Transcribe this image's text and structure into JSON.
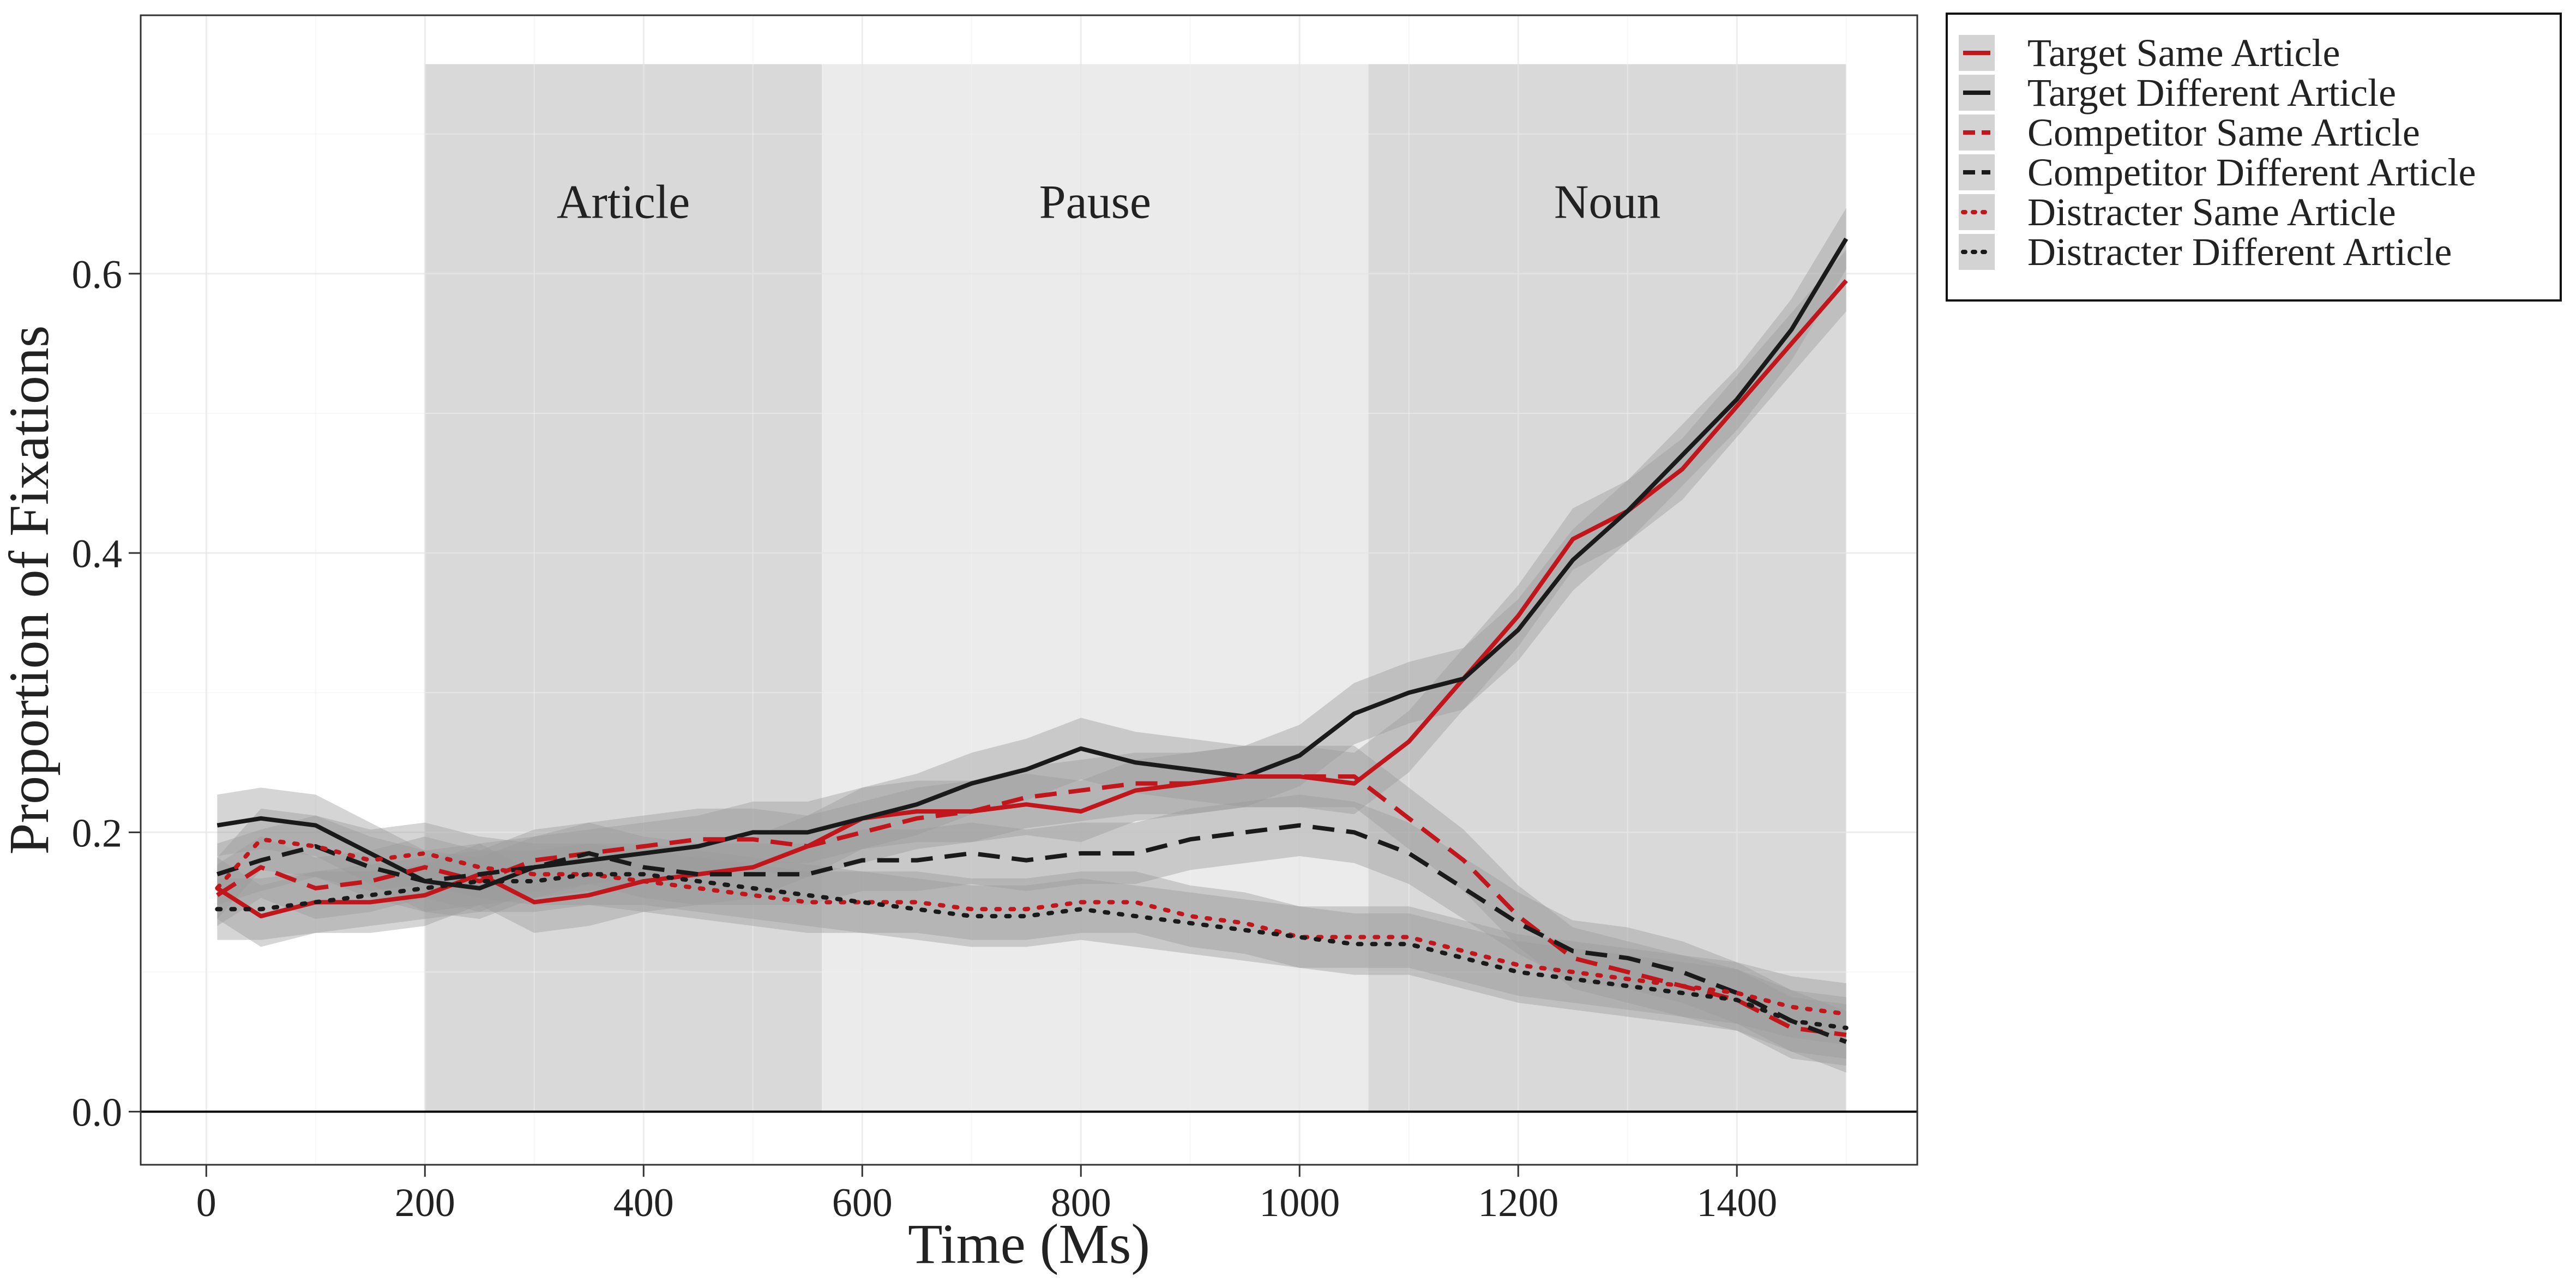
{
  "chart_data": {
    "type": "line",
    "xlabel": "Time (Ms)",
    "ylabel": "Proportion of Fixations",
    "xlim": [
      -60,
      1565
    ],
    "ylim": [
      -0.038,
      0.785
    ],
    "xticks": [
      0,
      200,
      400,
      600,
      800,
      1000,
      1200,
      1400
    ],
    "xtick_labels": [
      "0",
      "200",
      "400",
      "600",
      "800",
      "1000",
      "1200",
      "1400"
    ],
    "yticks": [
      0.0,
      0.2,
      0.4,
      0.6
    ],
    "ytick_labels": [
      "0.0",
      "0.2",
      "0.4",
      "0.6"
    ],
    "grid": true,
    "legend_position": "right",
    "regions": [
      {
        "label": "Article",
        "x0": 200,
        "x1": 563,
        "y0": 0,
        "y1": 0.75,
        "color": "#d9d9d9"
      },
      {
        "label": "Pause",
        "x0": 563,
        "x1": 1063,
        "y0": 0,
        "y1": 0.75,
        "color": "#ebebeb"
      },
      {
        "label": "Noun",
        "x0": 1063,
        "x1": 1500,
        "y0": 0,
        "y1": 0.75,
        "color": "#d9d9d9"
      }
    ],
    "region_label_y": 0.64,
    "ribbon_halfwidth": 0.022,
    "ribbon_color": "#9a9a9a",
    "colors": {
      "same": "#c0161c",
      "different": "#1a1a1a"
    },
    "x": [
      10,
      50,
      100,
      150,
      200,
      250,
      300,
      350,
      400,
      450,
      500,
      550,
      600,
      650,
      700,
      750,
      800,
      850,
      900,
      950,
      1000,
      1050,
      1100,
      1150,
      1200,
      1250,
      1300,
      1350,
      1400,
      1450,
      1500
    ],
    "series": [
      {
        "name": "Target Same Article",
        "style": "solid",
        "color": "#c0161c",
        "values": [
          0.16,
          0.14,
          0.15,
          0.15,
          0.155,
          0.17,
          0.15,
          0.155,
          0.165,
          0.17,
          0.175,
          0.19,
          0.21,
          0.215,
          0.215,
          0.22,
          0.215,
          0.23,
          0.235,
          0.24,
          0.24,
          0.235,
          0.265,
          0.31,
          0.355,
          0.41,
          0.43,
          0.46,
          0.505,
          0.55,
          0.595
        ]
      },
      {
        "name": "Target Different Article",
        "style": "solid",
        "color": "#1a1a1a",
        "values": [
          0.205,
          0.21,
          0.205,
          0.185,
          0.165,
          0.16,
          0.175,
          0.18,
          0.185,
          0.19,
          0.2,
          0.2,
          0.21,
          0.22,
          0.235,
          0.245,
          0.26,
          0.25,
          0.245,
          0.24,
          0.255,
          0.285,
          0.3,
          0.31,
          0.345,
          0.395,
          0.43,
          0.47,
          0.51,
          0.56,
          0.625
        ]
      },
      {
        "name": "Competitor Same Article",
        "style": "dashed",
        "color": "#c0161c",
        "values": [
          0.155,
          0.175,
          0.16,
          0.165,
          0.175,
          0.165,
          0.18,
          0.185,
          0.19,
          0.195,
          0.195,
          0.19,
          0.2,
          0.21,
          0.215,
          0.225,
          0.23,
          0.235,
          0.235,
          0.24,
          0.24,
          0.24,
          0.21,
          0.18,
          0.14,
          0.11,
          0.1,
          0.09,
          0.08,
          0.06,
          0.055
        ]
      },
      {
        "name": "Competitor Different Article",
        "style": "dashed",
        "color": "#1a1a1a",
        "values": [
          0.17,
          0.18,
          0.19,
          0.175,
          0.165,
          0.17,
          0.175,
          0.185,
          0.175,
          0.17,
          0.17,
          0.17,
          0.18,
          0.18,
          0.185,
          0.18,
          0.185,
          0.185,
          0.195,
          0.2,
          0.205,
          0.2,
          0.185,
          0.16,
          0.135,
          0.115,
          0.11,
          0.1,
          0.085,
          0.065,
          0.05
        ]
      },
      {
        "name": "Distracter Same Article",
        "style": "dotted",
        "color": "#c0161c",
        "values": [
          0.16,
          0.195,
          0.19,
          0.18,
          0.185,
          0.175,
          0.17,
          0.17,
          0.165,
          0.16,
          0.155,
          0.15,
          0.15,
          0.15,
          0.145,
          0.145,
          0.15,
          0.15,
          0.14,
          0.135,
          0.125,
          0.125,
          0.125,
          0.115,
          0.105,
          0.1,
          0.095,
          0.09,
          0.085,
          0.075,
          0.07
        ]
      },
      {
        "name": "Distracter Different Article",
        "style": "dotted",
        "color": "#1a1a1a",
        "values": [
          0.145,
          0.145,
          0.15,
          0.155,
          0.16,
          0.165,
          0.165,
          0.17,
          0.17,
          0.165,
          0.16,
          0.155,
          0.15,
          0.145,
          0.14,
          0.14,
          0.145,
          0.14,
          0.135,
          0.13,
          0.125,
          0.12,
          0.12,
          0.11,
          0.1,
          0.095,
          0.09,
          0.085,
          0.08,
          0.065,
          0.06
        ]
      }
    ]
  }
}
